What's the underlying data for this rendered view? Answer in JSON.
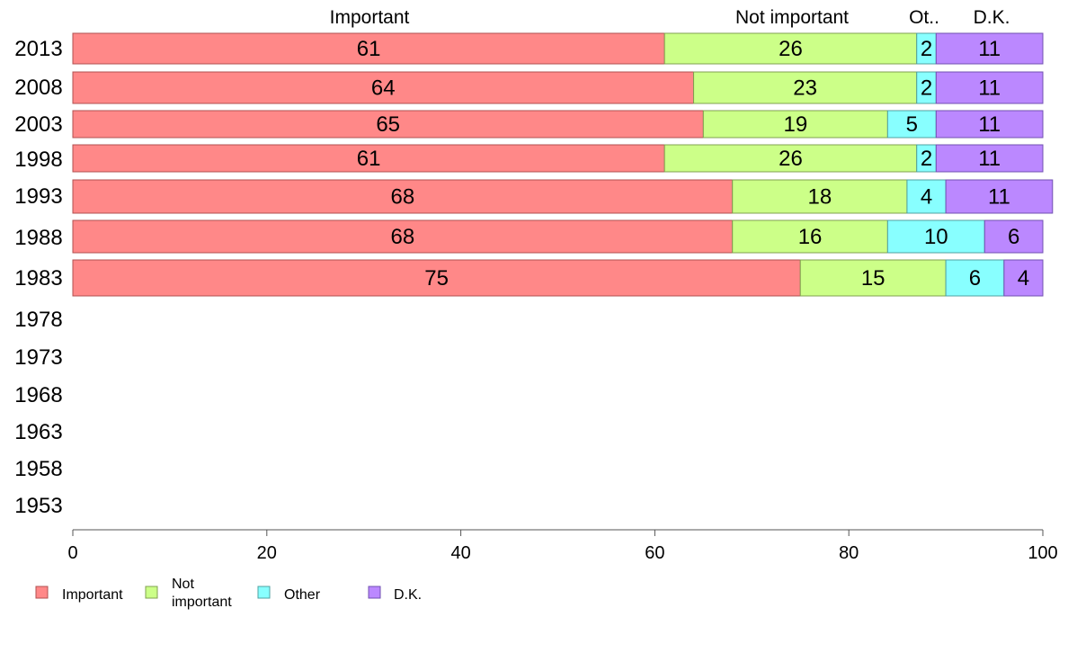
{
  "chart_data": {
    "type": "bar",
    "orientation": "horizontal",
    "stacked": true,
    "categories": [
      "2013",
      "2008",
      "2003",
      "1998",
      "1993",
      "1988",
      "1983",
      "1978",
      "1973",
      "1968",
      "1963",
      "1958",
      "1953"
    ],
    "series": [
      {
        "name": "Important",
        "color": "#ff8888",
        "values": [
          61,
          64,
          65,
          61,
          68,
          68,
          75,
          null,
          null,
          null,
          null,
          null,
          null
        ]
      },
      {
        "name": "Not important",
        "color": "#ccff88",
        "values": [
          26,
          23,
          19,
          26,
          18,
          16,
          15,
          null,
          null,
          null,
          null,
          null,
          null
        ]
      },
      {
        "name": "Other",
        "color": "#88ffff",
        "values": [
          2,
          2,
          5,
          2,
          4,
          10,
          6,
          null,
          null,
          null,
          null,
          null,
          null
        ]
      },
      {
        "name": "D.K.",
        "color": "#bb88ff",
        "values": [
          11,
          11,
          11,
          11,
          11,
          6,
          4,
          null,
          null,
          null,
          null,
          null,
          null
        ]
      }
    ],
    "column_headers": [
      "Important",
      "Not important",
      "Ot..",
      "D.K."
    ],
    "legend_labels": [
      "Important",
      "Not\nimportant",
      "Other",
      "D.K."
    ],
    "xlim": [
      0,
      100
    ],
    "xticks": [
      0,
      20,
      40,
      60,
      80,
      100
    ],
    "xlabel": "",
    "ylabel": "",
    "title": "",
    "grid": false,
    "legend_position": "bottom-left"
  }
}
